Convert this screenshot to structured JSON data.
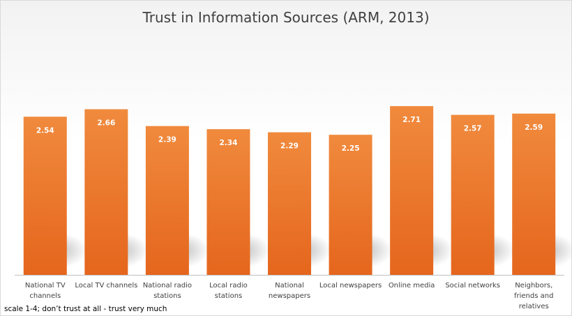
{
  "chart_data": {
    "type": "bar",
    "title": "Trust in Information Sources (ARM, 2013)",
    "categories": [
      [
        "National TV",
        "channels"
      ],
      [
        "Local TV channels"
      ],
      [
        "National radio",
        "stations"
      ],
      [
        "Local radio",
        "stations"
      ],
      [
        "National",
        "newspapers"
      ],
      [
        "Local newspapers"
      ],
      [
        "Online media"
      ],
      [
        "Social networks"
      ],
      [
        "Neighbors,",
        "friends and",
        "relatives"
      ]
    ],
    "values": [
      2.54,
      2.66,
      2.39,
      2.34,
      2.29,
      2.25,
      2.71,
      2.57,
      2.59
    ],
    "data_labels": [
      "2.54",
      "2.66",
      "2.39",
      "2.34",
      "2.29",
      "2.25",
      "2.71",
      "2.57",
      "2.59"
    ],
    "ylim": [
      0,
      4.0
    ],
    "grid": false,
    "legend": "none",
    "note": "scale 1-4; don’t trust at all - trust very much",
    "colors": {
      "bar_top": "#f08a3d",
      "bar_bottom": "#e5661d",
      "axis": "#bfbfbf"
    }
  }
}
